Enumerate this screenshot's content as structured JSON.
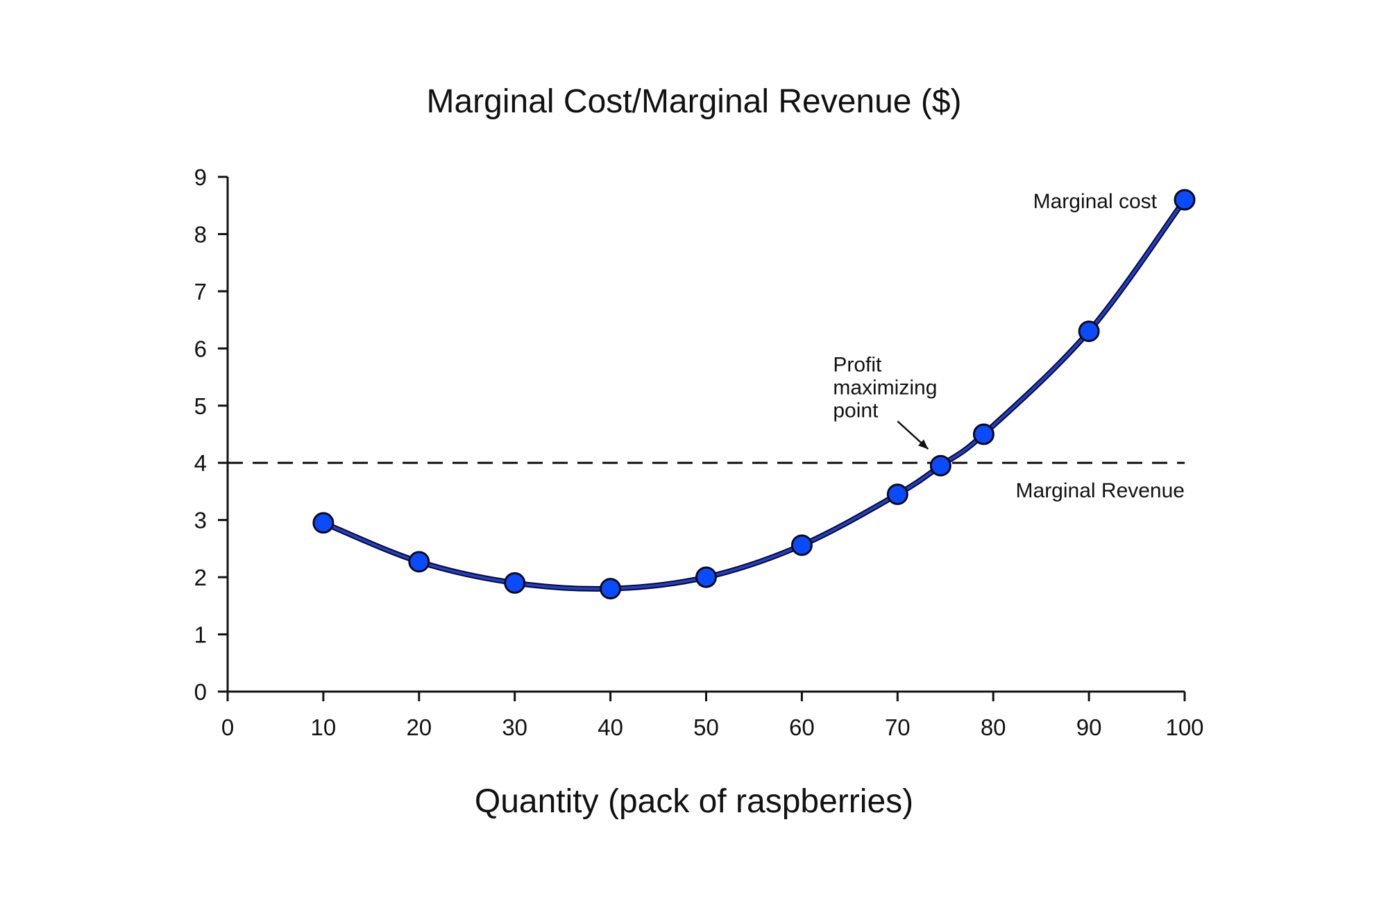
{
  "chart_data": {
    "type": "line",
    "title": "Marginal Cost/Marginal Revenue ($)",
    "xlabel": "Quantity (pack of raspberries)",
    "ylabel": "",
    "xlim": [
      0,
      100
    ],
    "ylim": [
      0,
      9
    ],
    "x_ticks": [
      0,
      10,
      20,
      30,
      40,
      50,
      60,
      70,
      80,
      90,
      100
    ],
    "y_ticks": [
      0,
      1,
      2,
      3,
      4,
      5,
      6,
      7,
      8,
      9
    ],
    "grid": false,
    "legend": "none",
    "series": [
      {
        "name": "Marginal cost",
        "style": "solid curve with circular markers",
        "points": [
          {
            "x": 10,
            "y": 2.95
          },
          {
            "x": 20,
            "y": 2.27
          },
          {
            "x": 30,
            "y": 1.9
          },
          {
            "x": 40,
            "y": 1.8
          },
          {
            "x": 50,
            "y": 2.0
          },
          {
            "x": 60,
            "y": 2.56
          },
          {
            "x": 70,
            "y": 3.45
          },
          {
            "x": 74.5,
            "y": 3.95
          },
          {
            "x": 79,
            "y": 4.5
          },
          {
            "x": 90,
            "y": 6.3
          },
          {
            "x": 100,
            "y": 8.6
          }
        ]
      },
      {
        "name": "Marginal Revenue",
        "style": "dashed horizontal line",
        "points": [
          {
            "x": 0,
            "y": 4
          },
          {
            "x": 100,
            "y": 4
          }
        ]
      }
    ],
    "annotations": [
      {
        "text": [
          "Profit",
          "maximizing",
          "point"
        ],
        "target": {
          "x": 74.5,
          "y": 3.95
        },
        "arrow": true
      }
    ],
    "colors": {
      "marker_fill": "#0b4bff",
      "curve": "#1f3dd6",
      "outline": "#0a0a1a",
      "axis": "#111111"
    }
  }
}
